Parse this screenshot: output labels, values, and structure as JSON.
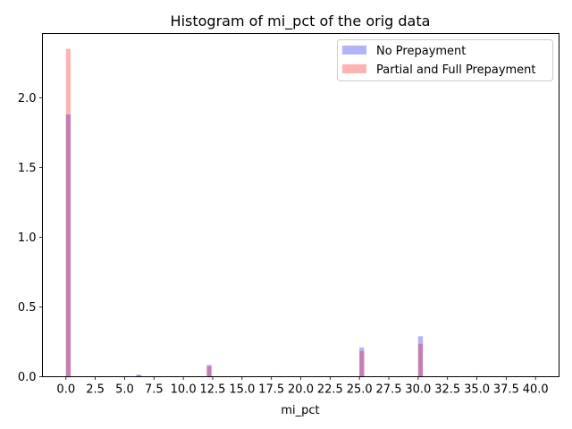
{
  "chart_data": {
    "type": "bar",
    "title": "Histogram of mi_pct of the orig data",
    "xlabel": "mi_pct",
    "ylabel": "",
    "xlim": [
      -2.0,
      42.0
    ],
    "ylim": [
      0,
      2.46
    ],
    "bin_width": 0.4,
    "x_ticks": [
      0.0,
      2.5,
      5.0,
      7.5,
      10.0,
      12.5,
      15.0,
      17.5,
      20.0,
      22.5,
      25.0,
      27.5,
      30.0,
      32.5,
      35.0,
      37.5,
      40.0
    ],
    "x_tick_labels": [
      "0.0",
      "2.5",
      "5.0",
      "7.5",
      "10.0",
      "12.5",
      "15.0",
      "17.5",
      "20.0",
      "22.5",
      "25.0",
      "27.5",
      "30.0",
      "32.5",
      "35.0",
      "37.5",
      "40.0"
    ],
    "y_ticks": [
      0.0,
      0.5,
      1.0,
      1.5,
      2.0
    ],
    "y_tick_labels": [
      "0.0",
      "0.5",
      "1.0",
      "1.5",
      "2.0"
    ],
    "grid": false,
    "legend_position": "top-right",
    "series": [
      {
        "name": "No Prepayment",
        "color": "#0000ff",
        "opacity": 0.3,
        "bins": [
          {
            "x": 0.0,
            "value": 1.88
          },
          {
            "x": 6.0,
            "value": 0.015
          },
          {
            "x": 12.0,
            "value": 0.085
          },
          {
            "x": 16.0,
            "value": 0.004
          },
          {
            "x": 18.0,
            "value": 0.004
          },
          {
            "x": 25.0,
            "value": 0.21
          },
          {
            "x": 30.0,
            "value": 0.29
          },
          {
            "x": 35.0,
            "value": 0.004
          }
        ]
      },
      {
        "name": "Partial and Full Prepayment",
        "color": "#ff0000",
        "opacity": 0.3,
        "bins": [
          {
            "x": 0.0,
            "value": 2.35
          },
          {
            "x": 6.0,
            "value": 0.01
          },
          {
            "x": 12.0,
            "value": 0.075
          },
          {
            "x": 25.0,
            "value": 0.185
          },
          {
            "x": 30.0,
            "value": 0.235
          }
        ]
      }
    ]
  }
}
